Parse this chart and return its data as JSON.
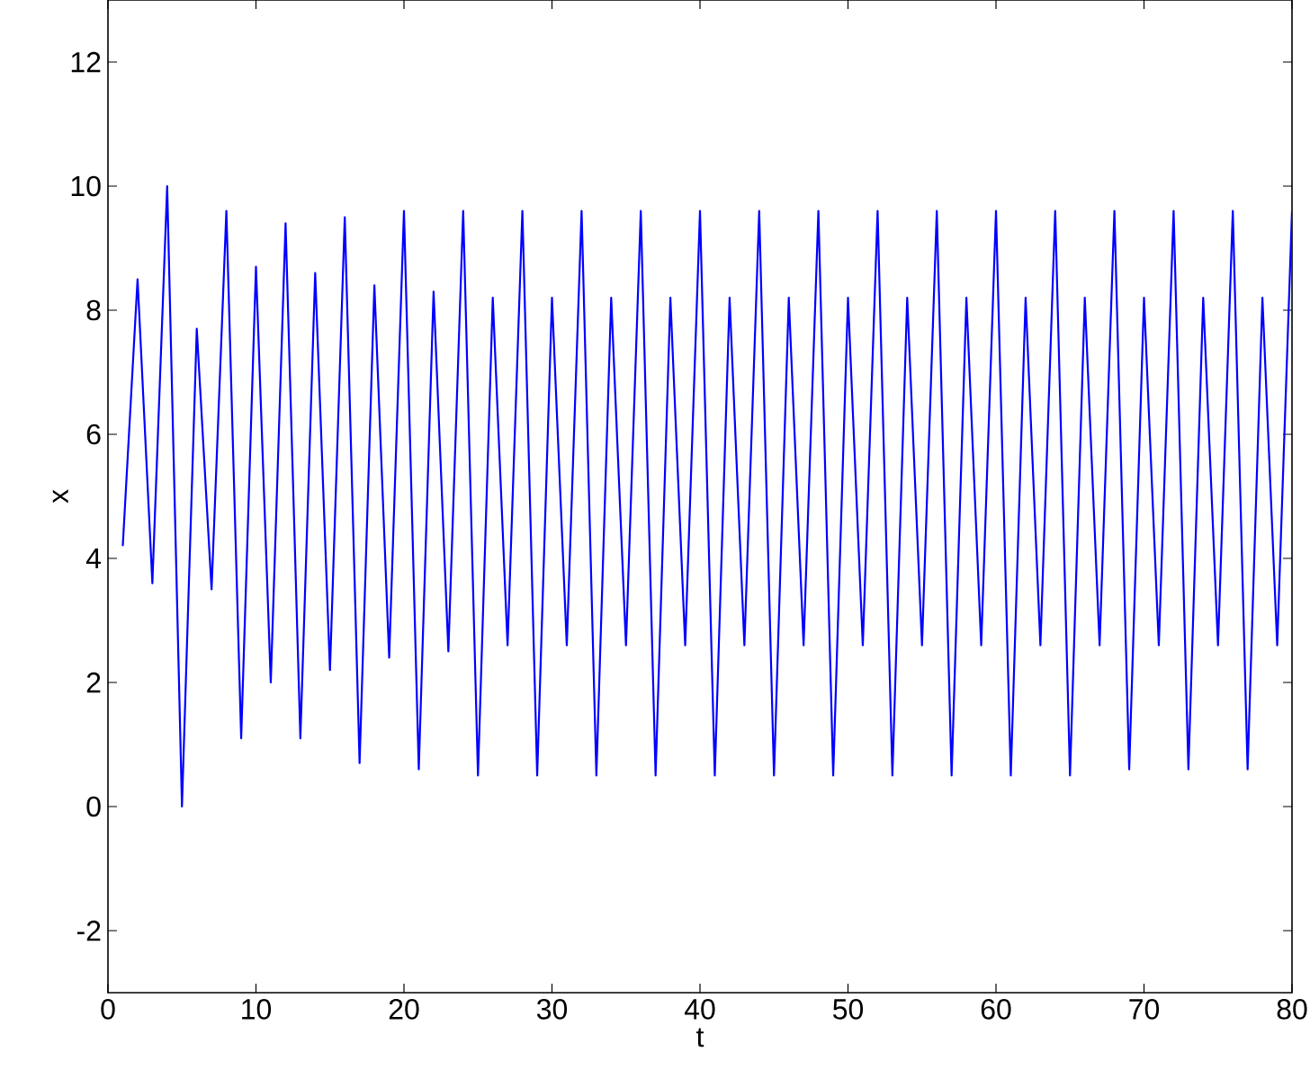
{
  "chart_data": {
    "type": "line",
    "xlabel": "t",
    "ylabel": "x",
    "x": [
      1,
      2,
      3,
      4,
      5,
      6,
      7,
      8,
      9,
      10,
      11,
      12,
      13,
      14,
      15,
      16,
      17,
      18,
      19,
      20,
      21,
      22,
      23,
      24,
      25,
      26,
      27,
      28,
      29,
      30,
      31,
      32,
      33,
      34,
      35,
      36,
      37,
      38,
      39,
      40,
      41,
      42,
      43,
      44,
      45,
      46,
      47,
      48,
      49,
      50,
      51,
      52,
      53,
      54,
      55,
      56,
      57,
      58,
      59,
      60,
      61,
      62,
      63,
      64,
      65,
      66,
      67,
      68,
      69,
      70,
      71,
      72,
      73,
      74,
      75,
      76,
      77,
      78,
      79,
      80
    ],
    "series": [
      {
        "color": "#0000ff",
        "values": [
          4.2,
          8.5,
          3.6,
          10.0,
          0.0,
          7.7,
          3.5,
          9.6,
          1.1,
          8.7,
          2.0,
          9.4,
          1.1,
          8.6,
          2.2,
          9.5,
          0.7,
          8.4,
          2.4,
          9.6,
          0.6,
          8.3,
          2.5,
          9.6,
          0.5,
          8.2,
          2.6,
          9.6,
          0.5,
          8.2,
          2.6,
          9.6,
          0.5,
          8.2,
          2.6,
          9.6,
          0.5,
          8.2,
          2.6,
          9.6,
          0.5,
          8.2,
          2.6,
          9.6,
          0.5,
          8.2,
          2.6,
          9.6,
          0.5,
          8.2,
          2.6,
          9.6,
          0.5,
          8.2,
          2.6,
          9.6,
          0.5,
          8.2,
          2.6,
          9.6,
          0.5,
          8.2,
          2.6,
          9.6,
          0.5,
          8.2,
          2.6,
          9.6,
          0.6,
          8.2,
          2.6,
          9.6,
          0.6,
          8.2,
          2.6,
          9.6,
          0.6,
          8.2,
          2.6,
          9.6
        ]
      }
    ],
    "xlim": [
      0,
      80
    ],
    "ylim": [
      -3,
      13
    ],
    "xticks": [
      0,
      10,
      20,
      30,
      40,
      50,
      60,
      70,
      80
    ],
    "yticks": [
      -2,
      0,
      2,
      4,
      6,
      8,
      10,
      12
    ],
    "grid": false,
    "marker": "none",
    "line_style": "solid"
  }
}
